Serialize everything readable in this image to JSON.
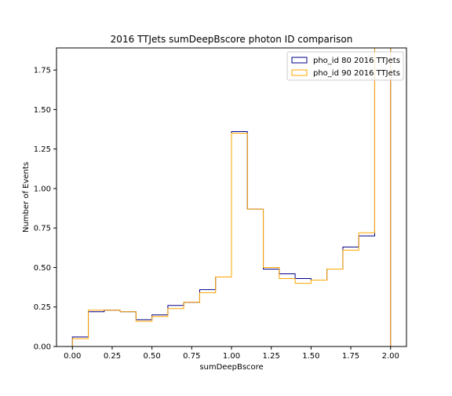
{
  "chart_data": {
    "type": "step-histogram",
    "title": "2016 TTJets sumDeepBscore photon ID comparison",
    "xlabel": "sumDeepBscore",
    "ylabel": "Number of Events",
    "xlim": [
      -0.1,
      2.1
    ],
    "ylim": [
      0,
      1.89
    ],
    "xticks": [
      "0.00",
      "0.25",
      "0.50",
      "0.75",
      "1.00",
      "1.25",
      "1.50",
      "1.75",
      "2.00"
    ],
    "yticks": [
      "0.00",
      "0.25",
      "0.50",
      "0.75",
      "1.00",
      "1.25",
      "1.50",
      "1.75"
    ],
    "legend_position": "upper-right",
    "bin_edges": [
      0.0,
      0.1,
      0.2,
      0.3,
      0.4,
      0.5,
      0.6,
      0.7,
      0.8,
      0.9,
      1.0,
      1.1,
      1.2,
      1.3,
      1.4,
      1.5,
      1.6,
      1.7,
      1.8,
      1.9,
      2.0
    ],
    "series": [
      {
        "name": "pho_id 80 2016 TTJets",
        "color": "#00008b",
        "values": [
          0.06,
          0.22,
          0.23,
          0.22,
          0.17,
          0.2,
          0.26,
          0.28,
          0.36,
          0.44,
          1.36,
          0.87,
          0.49,
          0.46,
          0.43,
          0.42,
          0.49,
          0.63,
          0.7,
          2.2
        ]
      },
      {
        "name": "pho_id 90 2016 TTJets",
        "color": "#ffa500",
        "values": [
          0.05,
          0.23,
          0.23,
          0.22,
          0.16,
          0.19,
          0.24,
          0.28,
          0.34,
          0.44,
          1.35,
          0.87,
          0.5,
          0.43,
          0.4,
          0.42,
          0.49,
          0.61,
          0.72,
          2.2
        ]
      }
    ]
  }
}
